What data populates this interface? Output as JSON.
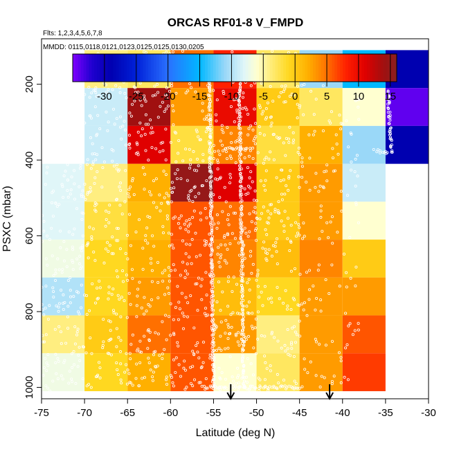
{
  "chart_data": {
    "type": "heatmap",
    "title": "ORCAS RF01-8 V_FMPD",
    "flights_note": "Flts: 1,2,3,4,5,6,7,8",
    "dates_note": "MMDD: 0115,0118,0121,0123,0125,0125,0130,0205",
    "xlabel": "Latitude (deg N)",
    "ylabel": "PSXC (mbar)",
    "xlim": [
      -75,
      -30
    ],
    "ylim": [
      1030,
      80
    ],
    "x_ticks": [
      -75,
      -70,
      -65,
      -60,
      -55,
      -50,
      -45,
      -40,
      -35,
      -30
    ],
    "y_ticks": [
      200,
      400,
      600,
      800,
      1000
    ],
    "colorbar": {
      "range": [
        -35,
        16
      ],
      "ticks": [
        -30,
        -25,
        -20,
        -15,
        -10,
        -5,
        0,
        5,
        10,
        15
      ],
      "stops": [
        {
          "value": -35,
          "color": "#8000ff"
        },
        {
          "value": -32,
          "color": "#2000d0"
        },
        {
          "value": -29,
          "color": "#0000b0"
        },
        {
          "value": -25,
          "color": "#0020d8"
        },
        {
          "value": -20,
          "color": "#2a70ff"
        },
        {
          "value": -15,
          "color": "#00b8ff"
        },
        {
          "value": -11,
          "color": "#9ad8f8"
        },
        {
          "value": -8,
          "color": "#e0f6f8"
        },
        {
          "value": -6,
          "color": "#ffffd0"
        },
        {
          "value": -4,
          "color": "#ffee80"
        },
        {
          "value": -1,
          "color": "#ffd820"
        },
        {
          "value": 2,
          "color": "#ffb000"
        },
        {
          "value": 5,
          "color": "#ff7000"
        },
        {
          "value": 8,
          "color": "#ff2000"
        },
        {
          "value": 11,
          "color": "#e00000"
        },
        {
          "value": 14,
          "color": "#a01010"
        },
        {
          "value": 16,
          "color": "#8a2020"
        }
      ]
    },
    "cells": [
      {
        "lat": [
          -70,
          -65
        ],
        "p": [
          110,
          210
        ],
        "value": -4
      },
      {
        "lat": [
          -65,
          -60
        ],
        "p": [
          110,
          210
        ],
        "value": -3
      },
      {
        "lat": [
          -60,
          -55
        ],
        "p": [
          110,
          210
        ],
        "value": 5
      },
      {
        "lat": [
          -55,
          -50
        ],
        "p": [
          110,
          210
        ],
        "value": 8
      },
      {
        "lat": [
          -50,
          -45
        ],
        "p": [
          110,
          210
        ],
        "value": -3
      },
      {
        "lat": [
          -45,
          -40
        ],
        "p": [
          110,
          210
        ],
        "value": -11
      },
      {
        "lat": [
          -40,
          -35
        ],
        "p": [
          110,
          210
        ],
        "value": -15
      },
      {
        "lat": [
          -35,
          -30
        ],
        "p": [
          110,
          210
        ],
        "value": -29
      },
      {
        "lat": [
          -70,
          -65
        ],
        "p": [
          210,
          310
        ],
        "value": -9
      },
      {
        "lat": [
          -65,
          -60
        ],
        "p": [
          210,
          310
        ],
        "value": 14
      },
      {
        "lat": [
          -60,
          -55
        ],
        "p": [
          210,
          310
        ],
        "value": 3
      },
      {
        "lat": [
          -55,
          -50
        ],
        "p": [
          210,
          310
        ],
        "value": 10
      },
      {
        "lat": [
          -50,
          -45
        ],
        "p": [
          210,
          310
        ],
        "value": 0
      },
      {
        "lat": [
          -45,
          -40
        ],
        "p": [
          210,
          310
        ],
        "value": -3
      },
      {
        "lat": [
          -40,
          -35
        ],
        "p": [
          210,
          310
        ],
        "value": -6
      },
      {
        "lat": [
          -35,
          -30
        ],
        "p": [
          210,
          310
        ],
        "value": -34
      },
      {
        "lat": [
          -70,
          -65
        ],
        "p": [
          310,
          410
        ],
        "value": -9
      },
      {
        "lat": [
          -65,
          -60
        ],
        "p": [
          310,
          410
        ],
        "value": 11
      },
      {
        "lat": [
          -60,
          -55
        ],
        "p": [
          310,
          410
        ],
        "value": -2
      },
      {
        "lat": [
          -55,
          -50
        ],
        "p": [
          310,
          410
        ],
        "value": 4
      },
      {
        "lat": [
          -50,
          -45
        ],
        "p": [
          310,
          410
        ],
        "value": -2
      },
      {
        "lat": [
          -45,
          -40
        ],
        "p": [
          310,
          410
        ],
        "value": 2
      },
      {
        "lat": [
          -40,
          -35
        ],
        "p": [
          310,
          410
        ],
        "value": -11
      },
      {
        "lat": [
          -35,
          -30
        ],
        "p": [
          310,
          410
        ],
        "value": -29
      },
      {
        "lat": [
          -75,
          -70
        ],
        "p": [
          410,
          510
        ],
        "value": -8
      },
      {
        "lat": [
          -70,
          -65
        ],
        "p": [
          410,
          510
        ],
        "value": -4
      },
      {
        "lat": [
          -65,
          -60
        ],
        "p": [
          410,
          510
        ],
        "value": 2
      },
      {
        "lat": [
          -60,
          -55
        ],
        "p": [
          410,
          510
        ],
        "value": 15
      },
      {
        "lat": [
          -55,
          -50
        ],
        "p": [
          410,
          510
        ],
        "value": 11
      },
      {
        "lat": [
          -50,
          -45
        ],
        "p": [
          410,
          510
        ],
        "value": 0
      },
      {
        "lat": [
          -45,
          -40
        ],
        "p": [
          410,
          510
        ],
        "value": 3
      },
      {
        "lat": [
          -40,
          -35
        ],
        "p": [
          410,
          510
        ],
        "value": -9
      },
      {
        "lat": [
          -75,
          -70
        ],
        "p": [
          510,
          610
        ],
        "value": -8
      },
      {
        "lat": [
          -70,
          -65
        ],
        "p": [
          510,
          610
        ],
        "value": -2
      },
      {
        "lat": [
          -65,
          -60
        ],
        "p": [
          510,
          610
        ],
        "value": 1
      },
      {
        "lat": [
          -60,
          -55
        ],
        "p": [
          510,
          610
        ],
        "value": 6
      },
      {
        "lat": [
          -55,
          -50
        ],
        "p": [
          510,
          610
        ],
        "value": 5
      },
      {
        "lat": [
          -50,
          -45
        ],
        "p": [
          510,
          610
        ],
        "value": 0
      },
      {
        "lat": [
          -45,
          -40
        ],
        "p": [
          510,
          610
        ],
        "value": 3
      },
      {
        "lat": [
          -40,
          -35
        ],
        "p": [
          510,
          610
        ],
        "value": -6
      },
      {
        "lat": [
          -75,
          -70
        ],
        "p": [
          610,
          710
        ],
        "value": -7
      },
      {
        "lat": [
          -70,
          -65
        ],
        "p": [
          610,
          710
        ],
        "value": -1
      },
      {
        "lat": [
          -65,
          -60
        ],
        "p": [
          610,
          710
        ],
        "value": 2
      },
      {
        "lat": [
          -60,
          -55
        ],
        "p": [
          610,
          710
        ],
        "value": 6
      },
      {
        "lat": [
          -55,
          -50
        ],
        "p": [
          610,
          710
        ],
        "value": 4
      },
      {
        "lat": [
          -50,
          -45
        ],
        "p": [
          610,
          710
        ],
        "value": 1
      },
      {
        "lat": [
          -45,
          -40
        ],
        "p": [
          610,
          710
        ],
        "value": 4
      },
      {
        "lat": [
          -40,
          -35
        ],
        "p": [
          610,
          710
        ],
        "value": 0
      },
      {
        "lat": [
          -75,
          -70
        ],
        "p": [
          710,
          810
        ],
        "value": -10
      },
      {
        "lat": [
          -70,
          -65
        ],
        "p": [
          710,
          810
        ],
        "value": -1
      },
      {
        "lat": [
          -65,
          -60
        ],
        "p": [
          710,
          810
        ],
        "value": 3
      },
      {
        "lat": [
          -60,
          -55
        ],
        "p": [
          710,
          810
        ],
        "value": 6
      },
      {
        "lat": [
          -55,
          -50
        ],
        "p": [
          710,
          810
        ],
        "value": 1
      },
      {
        "lat": [
          -50,
          -45
        ],
        "p": [
          710,
          810
        ],
        "value": -1
      },
      {
        "lat": [
          -45,
          -40
        ],
        "p": [
          710,
          810
        ],
        "value": 3
      },
      {
        "lat": [
          -40,
          -35
        ],
        "p": [
          710,
          810
        ],
        "value": 3
      },
      {
        "lat": [
          -75,
          -70
        ],
        "p": [
          810,
          910
        ],
        "value": -4
      },
      {
        "lat": [
          -70,
          -65
        ],
        "p": [
          810,
          910
        ],
        "value": 0
      },
      {
        "lat": [
          -65,
          -60
        ],
        "p": [
          810,
          910
        ],
        "value": 5
      },
      {
        "lat": [
          -60,
          -55
        ],
        "p": [
          810,
          910
        ],
        "value": 6
      },
      {
        "lat": [
          -55,
          -50
        ],
        "p": [
          810,
          910
        ],
        "value": 3
      },
      {
        "lat": [
          -50,
          -45
        ],
        "p": [
          810,
          910
        ],
        "value": -4
      },
      {
        "lat": [
          -45,
          -40
        ],
        "p": [
          810,
          910
        ],
        "value": 3
      },
      {
        "lat": [
          -40,
          -35
        ],
        "p": [
          810,
          910
        ],
        "value": 6
      },
      {
        "lat": [
          -75,
          -70
        ],
        "p": [
          910,
          1010
        ],
        "value": -7
      },
      {
        "lat": [
          -70,
          -65
        ],
        "p": [
          910,
          1010
        ],
        "value": -1
      },
      {
        "lat": [
          -65,
          -60
        ],
        "p": [
          910,
          1010
        ],
        "value": 2
      },
      {
        "lat": [
          -60,
          -55
        ],
        "p": [
          910,
          1010
        ],
        "value": 6
      },
      {
        "lat": [
          -55,
          -50
        ],
        "p": [
          910,
          1010
        ],
        "value": -6
      },
      {
        "lat": [
          -50,
          -45
        ],
        "p": [
          910,
          1010
        ],
        "value": -3
      },
      {
        "lat": [
          -45,
          -40
        ],
        "p": [
          910,
          1010
        ],
        "value": 3
      },
      {
        "lat": [
          -40,
          -35
        ],
        "p": [
          910,
          1010
        ],
        "value": 7
      }
    ],
    "arrows": [
      {
        "lat": -53,
        "label": "downward arrow marker"
      },
      {
        "lat": -41.5,
        "label": "downward arrow marker"
      }
    ],
    "flight_tracks": {
      "marker": "open circle",
      "color": "#ffffff",
      "segments": [
        {
          "lat": [
            -70,
            -51.5
          ],
          "p": [
            180,
            183
          ]
        },
        {
          "lat": [
            -40,
            -35
          ],
          "p": [
            180,
            183
          ]
        },
        {
          "lat": [
            -55.5,
            -55
          ],
          "p": [
            180,
            1000
          ]
        },
        {
          "lat": [
            -52,
            -51.5
          ],
          "p": [
            180,
            1000
          ]
        },
        {
          "lat": [
            -56,
            -50
          ],
          "p": [
            1000,
            1000
          ]
        },
        {
          "lat": [
            -50,
            -45
          ],
          "p": [
            1000,
            1000
          ]
        },
        {
          "lat": [
            -34.7,
            -34.3
          ],
          "p": [
            220,
            380
          ]
        },
        {
          "lat": [
            -36.3,
            -34.7
          ],
          "p": [
            375,
            380
          ]
        },
        {
          "lat": [
            -53.5,
            -50.5
          ],
          "p": [
            370,
            372
          ]
        }
      ],
      "scatter_count": 1300
    }
  }
}
